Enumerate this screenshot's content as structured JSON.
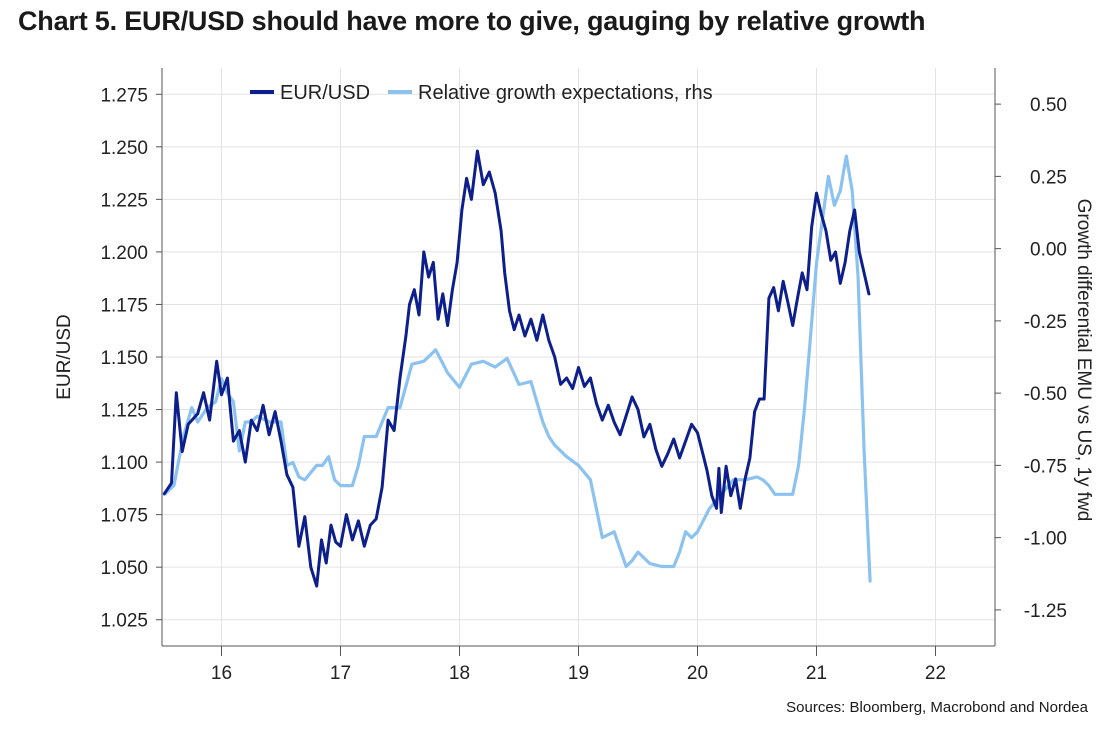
{
  "chart_data": {
    "type": "line",
    "title": "Chart 5. EUR/USD should have more to give, gauging by relative growth",
    "source": "Sources: Bloomberg, Macrobond and Nordea",
    "xlabel": "",
    "ylabel_left": "EUR/USD",
    "ylabel_right": "Growth differential EMU vs US, 1y fwd",
    "x_ticks": [
      "16",
      "17",
      "18",
      "19",
      "20",
      "21",
      "22"
    ],
    "xlim": [
      2015.5,
      2022.5
    ],
    "ylim_left": [
      1.0125,
      1.2875
    ],
    "ylim_right": [
      -1.375,
      0.625
    ],
    "y_ticks_left": [
      "1.025",
      "1.050",
      "1.075",
      "1.100",
      "1.125",
      "1.150",
      "1.175",
      "1.200",
      "1.225",
      "1.250",
      "1.275"
    ],
    "y_ticks_right": [
      "-1.25",
      "-1.00",
      "-0.75",
      "-0.50",
      "-0.25",
      "0.00",
      "0.25",
      "0.50"
    ],
    "series": [
      {
        "name": "EUR/USD",
        "axis": "left",
        "color": "#0d1f8c",
        "points": [
          [
            2015.52,
            1.085
          ],
          [
            2015.58,
            1.09
          ],
          [
            2015.62,
            1.133
          ],
          [
            2015.67,
            1.105
          ],
          [
            2015.72,
            1.118
          ],
          [
            2015.8,
            1.123
          ],
          [
            2015.85,
            1.133
          ],
          [
            2015.9,
            1.12
          ],
          [
            2015.96,
            1.148
          ],
          [
            2016.0,
            1.132
          ],
          [
            2016.05,
            1.14
          ],
          [
            2016.1,
            1.11
          ],
          [
            2016.15,
            1.115
          ],
          [
            2016.2,
            1.1
          ],
          [
            2016.25,
            1.12
          ],
          [
            2016.3,
            1.115
          ],
          [
            2016.35,
            1.127
          ],
          [
            2016.4,
            1.113
          ],
          [
            2016.45,
            1.124
          ],
          [
            2016.5,
            1.11
          ],
          [
            2016.55,
            1.094
          ],
          [
            2016.6,
            1.088
          ],
          [
            2016.65,
            1.06
          ],
          [
            2016.7,
            1.074
          ],
          [
            2016.75,
            1.05
          ],
          [
            2016.8,
            1.041
          ],
          [
            2016.84,
            1.063
          ],
          [
            2016.88,
            1.052
          ],
          [
            2016.92,
            1.07
          ],
          [
            2016.96,
            1.062
          ],
          [
            2017.0,
            1.06
          ],
          [
            2017.05,
            1.075
          ],
          [
            2017.1,
            1.063
          ],
          [
            2017.15,
            1.072
          ],
          [
            2017.2,
            1.06
          ],
          [
            2017.25,
            1.07
          ],
          [
            2017.3,
            1.073
          ],
          [
            2017.35,
            1.088
          ],
          [
            2017.4,
            1.12
          ],
          [
            2017.45,
            1.115
          ],
          [
            2017.5,
            1.14
          ],
          [
            2017.55,
            1.16
          ],
          [
            2017.58,
            1.175
          ],
          [
            2017.62,
            1.182
          ],
          [
            2017.66,
            1.17
          ],
          [
            2017.7,
            1.2
          ],
          [
            2017.74,
            1.188
          ],
          [
            2017.78,
            1.195
          ],
          [
            2017.82,
            1.168
          ],
          [
            2017.86,
            1.18
          ],
          [
            2017.9,
            1.165
          ],
          [
            2017.94,
            1.182
          ],
          [
            2017.98,
            1.195
          ],
          [
            2018.02,
            1.22
          ],
          [
            2018.06,
            1.235
          ],
          [
            2018.1,
            1.225
          ],
          [
            2018.15,
            1.248
          ],
          [
            2018.2,
            1.232
          ],
          [
            2018.25,
            1.238
          ],
          [
            2018.3,
            1.228
          ],
          [
            2018.35,
            1.21
          ],
          [
            2018.38,
            1.19
          ],
          [
            2018.42,
            1.172
          ],
          [
            2018.46,
            1.163
          ],
          [
            2018.5,
            1.17
          ],
          [
            2018.55,
            1.16
          ],
          [
            2018.6,
            1.168
          ],
          [
            2018.65,
            1.158
          ],
          [
            2018.7,
            1.17
          ],
          [
            2018.75,
            1.158
          ],
          [
            2018.8,
            1.15
          ],
          [
            2018.85,
            1.137
          ],
          [
            2018.9,
            1.14
          ],
          [
            2018.95,
            1.135
          ],
          [
            2019.0,
            1.145
          ],
          [
            2019.05,
            1.136
          ],
          [
            2019.1,
            1.14
          ],
          [
            2019.15,
            1.128
          ],
          [
            2019.2,
            1.12
          ],
          [
            2019.25,
            1.127
          ],
          [
            2019.3,
            1.119
          ],
          [
            2019.35,
            1.113
          ],
          [
            2019.4,
            1.122
          ],
          [
            2019.45,
            1.131
          ],
          [
            2019.5,
            1.125
          ],
          [
            2019.55,
            1.112
          ],
          [
            2019.6,
            1.118
          ],
          [
            2019.65,
            1.106
          ],
          [
            2019.7,
            1.098
          ],
          [
            2019.75,
            1.104
          ],
          [
            2019.8,
            1.111
          ],
          [
            2019.85,
            1.102
          ],
          [
            2019.9,
            1.11
          ],
          [
            2019.95,
            1.118
          ],
          [
            2020.0,
            1.114
          ],
          [
            2020.04,
            1.105
          ],
          [
            2020.08,
            1.096
          ],
          [
            2020.12,
            1.084
          ],
          [
            2020.16,
            1.078
          ],
          [
            2020.18,
            1.097
          ],
          [
            2020.2,
            1.076
          ],
          [
            2020.24,
            1.098
          ],
          [
            2020.28,
            1.084
          ],
          [
            2020.32,
            1.092
          ],
          [
            2020.36,
            1.078
          ],
          [
            2020.4,
            1.092
          ],
          [
            2020.44,
            1.102
          ],
          [
            2020.48,
            1.124
          ],
          [
            2020.52,
            1.13
          ],
          [
            2020.56,
            1.13
          ],
          [
            2020.6,
            1.178
          ],
          [
            2020.64,
            1.183
          ],
          [
            2020.68,
            1.172
          ],
          [
            2020.72,
            1.186
          ],
          [
            2020.76,
            1.176
          ],
          [
            2020.8,
            1.165
          ],
          [
            2020.84,
            1.178
          ],
          [
            2020.88,
            1.19
          ],
          [
            2020.92,
            1.182
          ],
          [
            2020.96,
            1.212
          ],
          [
            2021.0,
            1.228
          ],
          [
            2021.04,
            1.218
          ],
          [
            2021.08,
            1.21
          ],
          [
            2021.12,
            1.196
          ],
          [
            2021.16,
            1.2
          ],
          [
            2021.2,
            1.185
          ],
          [
            2021.24,
            1.195
          ],
          [
            2021.28,
            1.21
          ],
          [
            2021.32,
            1.22
          ],
          [
            2021.36,
            1.2
          ],
          [
            2021.4,
            1.19
          ],
          [
            2021.44,
            1.18
          ]
        ]
      },
      {
        "name": "Relative growth expectations, rhs",
        "axis": "right",
        "color": "#8cc2f0",
        "points": [
          [
            2015.52,
            -0.85
          ],
          [
            2015.6,
            -0.82
          ],
          [
            2015.68,
            -0.65
          ],
          [
            2015.75,
            -0.55
          ],
          [
            2015.8,
            -0.6
          ],
          [
            2015.88,
            -0.55
          ],
          [
            2015.95,
            -0.53
          ],
          [
            2016.0,
            -0.45
          ],
          [
            2016.05,
            -0.5
          ],
          [
            2016.1,
            -0.53
          ],
          [
            2016.15,
            -0.7
          ],
          [
            2016.2,
            -0.6
          ],
          [
            2016.25,
            -0.6
          ],
          [
            2016.3,
            -0.58
          ],
          [
            2016.4,
            -0.6
          ],
          [
            2016.5,
            -0.6
          ],
          [
            2016.55,
            -0.75
          ],
          [
            2016.6,
            -0.74
          ],
          [
            2016.65,
            -0.79
          ],
          [
            2016.7,
            -0.8
          ],
          [
            2016.8,
            -0.75
          ],
          [
            2016.85,
            -0.75
          ],
          [
            2016.9,
            -0.72
          ],
          [
            2016.95,
            -0.8
          ],
          [
            2017.0,
            -0.82
          ],
          [
            2017.1,
            -0.82
          ],
          [
            2017.15,
            -0.75
          ],
          [
            2017.2,
            -0.65
          ],
          [
            2017.3,
            -0.65
          ],
          [
            2017.4,
            -0.55
          ],
          [
            2017.5,
            -0.55
          ],
          [
            2017.6,
            -0.4
          ],
          [
            2017.7,
            -0.39
          ],
          [
            2017.8,
            -0.35
          ],
          [
            2017.9,
            -0.43
          ],
          [
            2018.0,
            -0.48
          ],
          [
            2018.1,
            -0.4
          ],
          [
            2018.2,
            -0.39
          ],
          [
            2018.3,
            -0.41
          ],
          [
            2018.4,
            -0.38
          ],
          [
            2018.5,
            -0.47
          ],
          [
            2018.6,
            -0.46
          ],
          [
            2018.7,
            -0.6
          ],
          [
            2018.75,
            -0.65
          ],
          [
            2018.8,
            -0.68
          ],
          [
            2018.9,
            -0.72
          ],
          [
            2019.0,
            -0.75
          ],
          [
            2019.1,
            -0.8
          ],
          [
            2019.15,
            -0.9
          ],
          [
            2019.2,
            -1.0
          ],
          [
            2019.3,
            -0.98
          ],
          [
            2019.4,
            -1.1
          ],
          [
            2019.45,
            -1.08
          ],
          [
            2019.5,
            -1.05
          ],
          [
            2019.6,
            -1.09
          ],
          [
            2019.7,
            -1.1
          ],
          [
            2019.8,
            -1.1
          ],
          [
            2019.85,
            -1.05
          ],
          [
            2019.9,
            -0.98
          ],
          [
            2019.95,
            -1.0
          ],
          [
            2020.0,
            -0.98
          ],
          [
            2020.1,
            -0.9
          ],
          [
            2020.2,
            -0.85
          ],
          [
            2020.3,
            -0.8
          ],
          [
            2020.4,
            -0.8
          ],
          [
            2020.5,
            -0.79
          ],
          [
            2020.55,
            -0.8
          ],
          [
            2020.6,
            -0.82
          ],
          [
            2020.65,
            -0.85
          ],
          [
            2020.7,
            -0.85
          ],
          [
            2020.8,
            -0.85
          ],
          [
            2020.85,
            -0.75
          ],
          [
            2020.9,
            -0.55
          ],
          [
            2020.95,
            -0.3
          ],
          [
            2021.0,
            -0.05
          ],
          [
            2021.05,
            0.1
          ],
          [
            2021.1,
            0.25
          ],
          [
            2021.15,
            0.15
          ],
          [
            2021.2,
            0.2
          ],
          [
            2021.25,
            0.32
          ],
          [
            2021.3,
            0.2
          ],
          [
            2021.35,
            -0.1
          ],
          [
            2021.4,
            -0.7
          ],
          [
            2021.45,
            -1.15
          ]
        ]
      }
    ]
  }
}
